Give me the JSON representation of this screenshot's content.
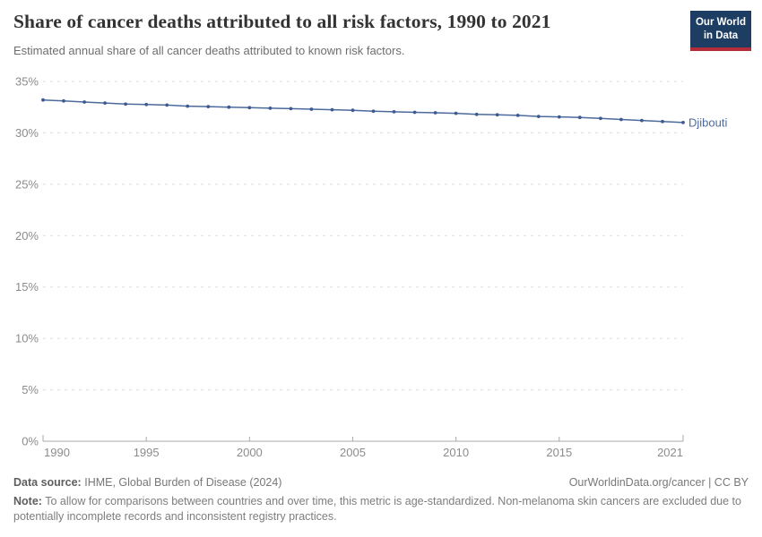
{
  "header": {
    "title": "Share of cancer deaths attributed to all risk factors, 1990 to 2021",
    "subtitle": "Estimated annual share of all cancer deaths attributed to known risk factors.",
    "logo": {
      "line1": "Our World",
      "line2": "in Data",
      "bg_color": "#1D3D63",
      "accent_color": "#B22D39"
    }
  },
  "chart_data": {
    "type": "line",
    "title": "Share of cancer deaths attributed to all risk factors, 1990 to 2021",
    "subtitle": "Estimated annual share of all cancer deaths attributed to known risk factors.",
    "x": [
      1990,
      1991,
      1992,
      1993,
      1994,
      1995,
      1996,
      1997,
      1998,
      1999,
      2000,
      2001,
      2002,
      2003,
      2004,
      2005,
      2006,
      2007,
      2008,
      2009,
      2010,
      2011,
      2012,
      2013,
      2014,
      2015,
      2016,
      2017,
      2018,
      2019,
      2020,
      2021
    ],
    "series": [
      {
        "name": "Djibouti",
        "values": [
          33.2,
          33.1,
          33.0,
          32.9,
          32.8,
          32.75,
          32.7,
          32.6,
          32.55,
          32.5,
          32.45,
          32.4,
          32.35,
          32.3,
          32.25,
          32.2,
          32.1,
          32.05,
          32.0,
          31.95,
          31.9,
          31.8,
          31.75,
          31.7,
          31.6,
          31.55,
          31.5,
          31.4,
          31.3,
          31.2,
          31.1,
          31.0
        ]
      }
    ],
    "xlabel": "",
    "ylabel": "",
    "ylim": [
      0,
      35
    ],
    "ytick_interval": 5,
    "ytick_suffix": "%",
    "xticks": [
      1990,
      1995,
      2000,
      2005,
      2010,
      2015,
      2021
    ],
    "grid": true,
    "grid_style": "dashed-horizontal",
    "legend_position": "end-of-line-label"
  },
  "colors": {
    "line": "#4C6A9C",
    "point": "#3D5A91",
    "grid": "#dddddd",
    "axis": "#a8a8a8",
    "tick_label": "#8c8c8c",
    "entity_label": "#4C6A9C"
  },
  "footer": {
    "data_source_label": "Data source:",
    "data_source_value": "IHME, Global Burden of Disease (2024)",
    "license": "OurWorldinData.org/cancer | CC BY",
    "note_label": "Note:",
    "note_text": "To allow for comparisons between countries and over time, this metric is age-standardized. Non-melanoma skin cancers are excluded due to potentially incomplete records and inconsistent registry practices."
  }
}
